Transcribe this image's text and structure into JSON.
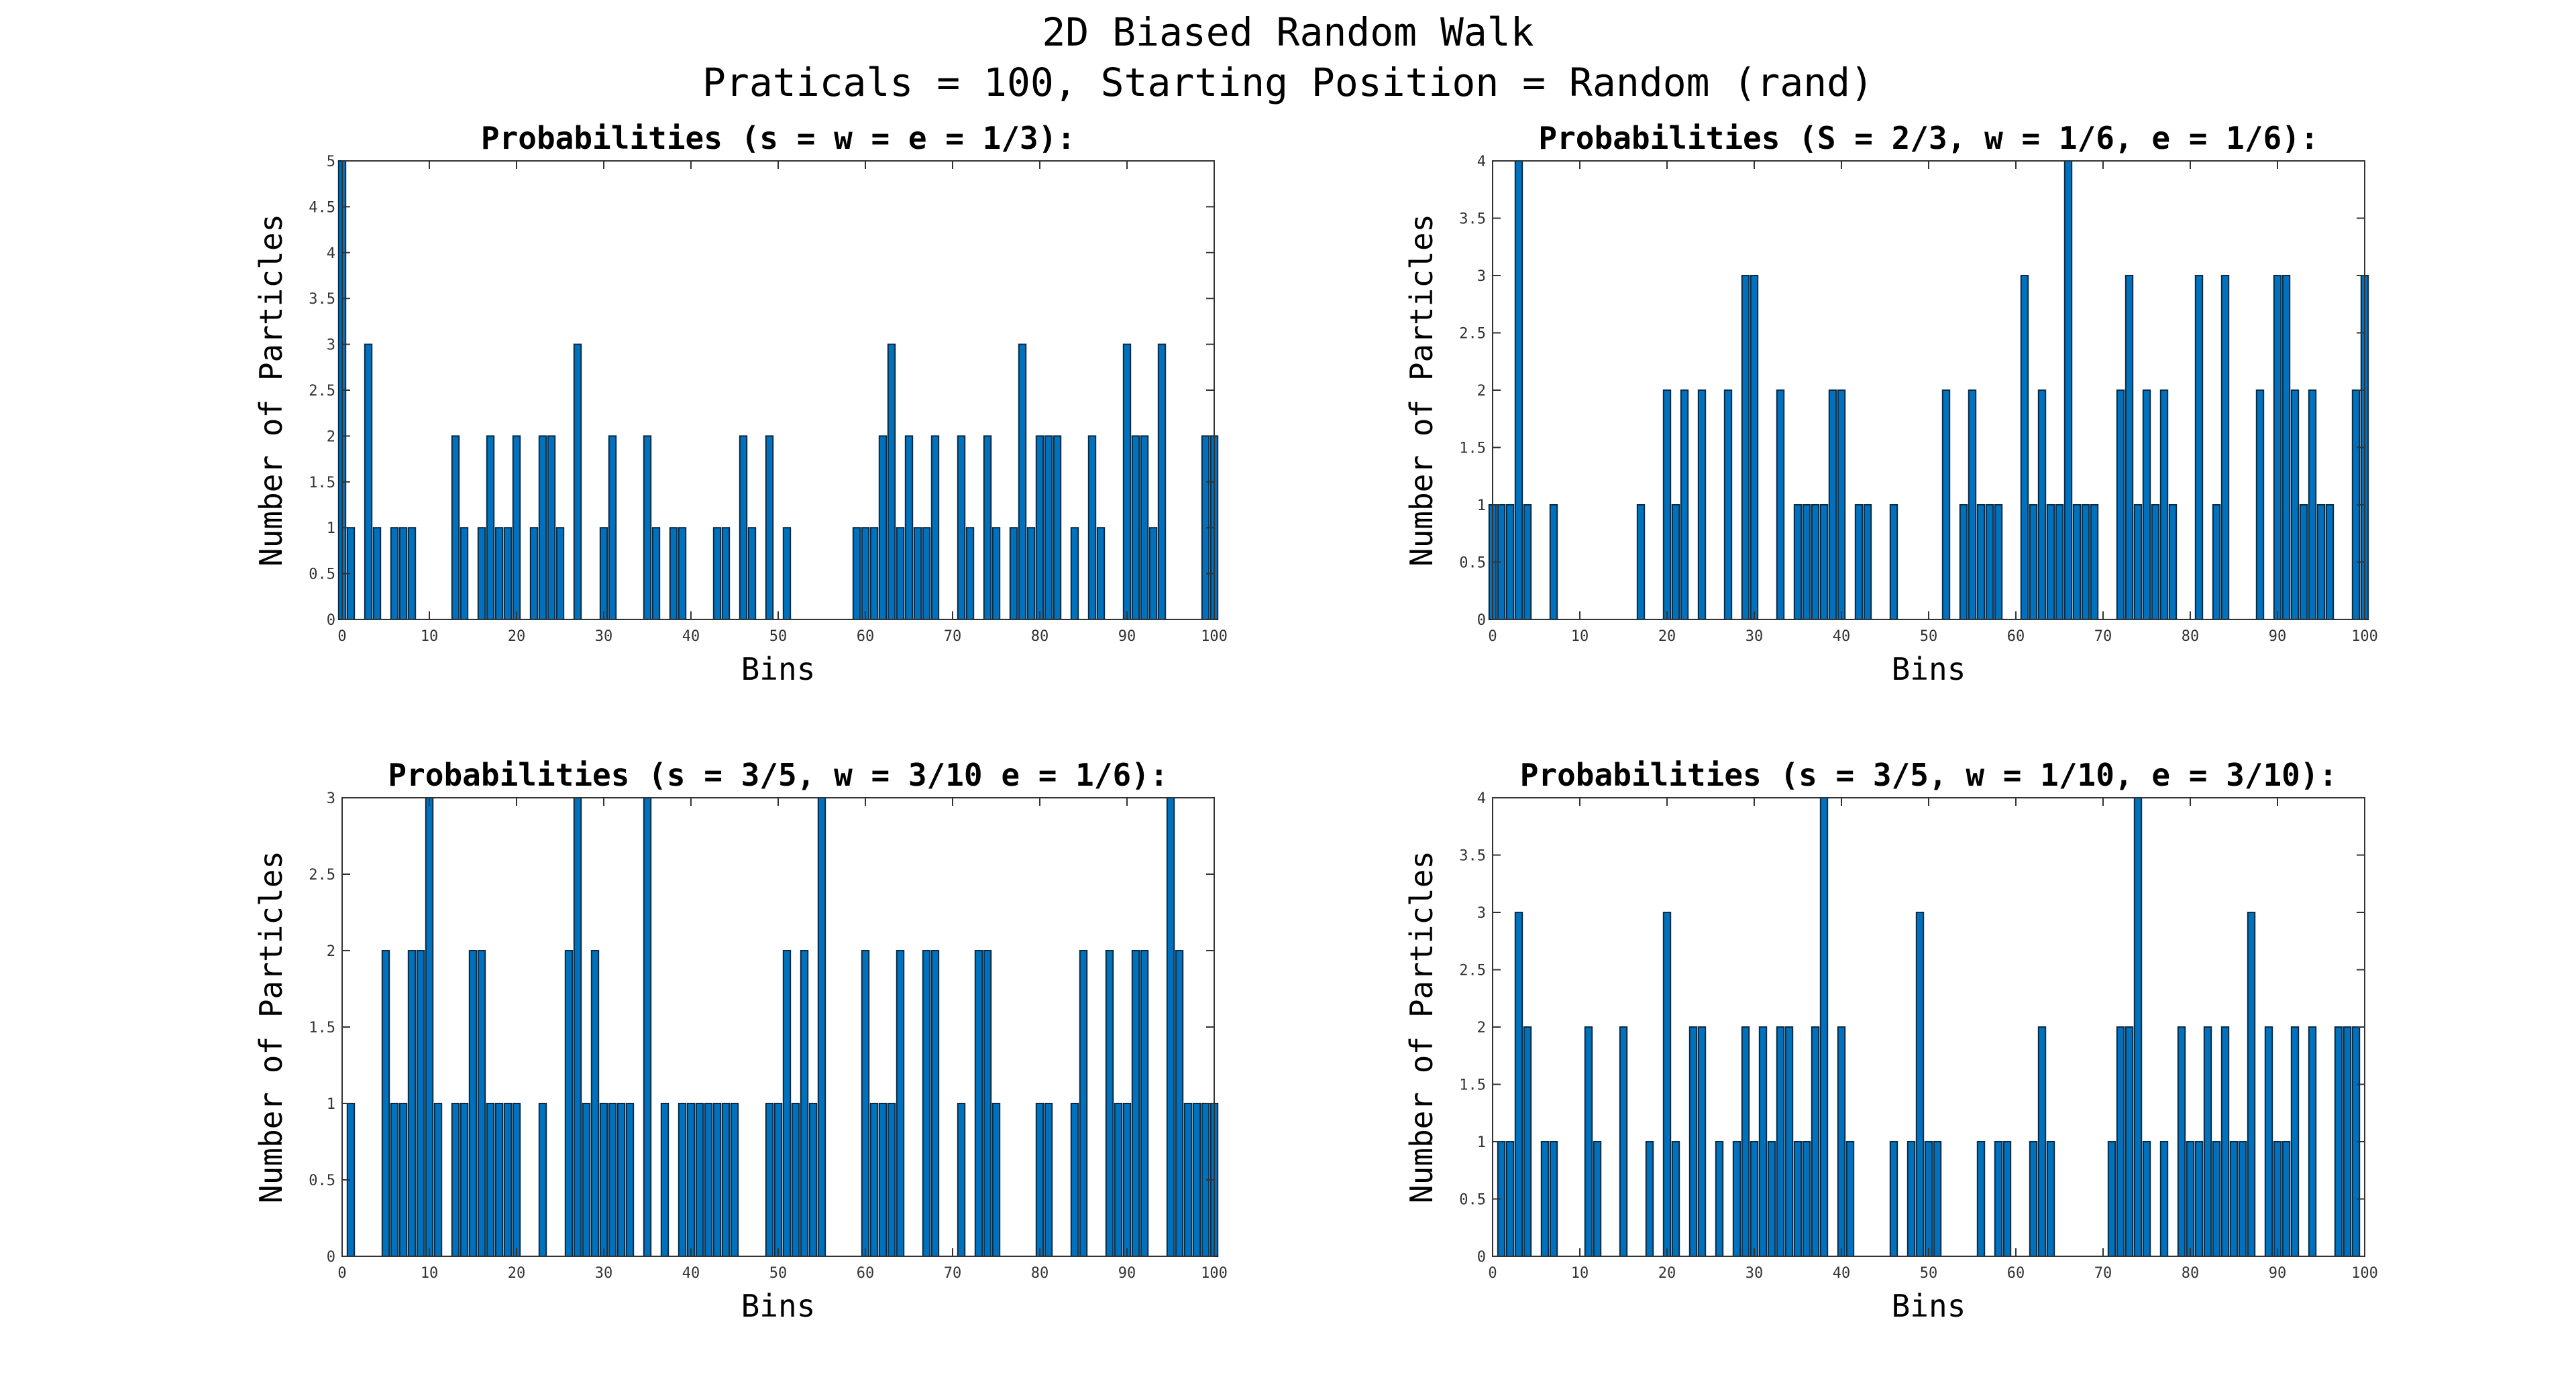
{
  "figure": {
    "title_line1": "2D Biased Random Walk",
    "title_line2": "Praticals = 100, Starting Position = Random (rand)"
  },
  "colors": {
    "bar": "#0072bd",
    "bar_edge": "#0b2a44",
    "axis": "#333333"
  },
  "chart_data": [
    {
      "type": "bar",
      "title": "Probabilities (s = w = e = 1/3):",
      "xlabel": "Bins",
      "ylabel": "Number of Particles",
      "xlim": [
        0,
        100
      ],
      "ylim": [
        0,
        5
      ],
      "xticks": [
        0,
        10,
        20,
        30,
        40,
        50,
        60,
        70,
        80,
        90,
        100
      ],
      "yticks": [
        0,
        0.5,
        1,
        1.5,
        2,
        2.5,
        3,
        3.5,
        4,
        4.5,
        5
      ],
      "grid": false,
      "values": [
        5,
        1,
        0,
        3,
        1,
        0,
        1,
        1,
        1,
        0,
        0,
        0,
        0,
        2,
        1,
        0,
        1,
        2,
        1,
        1,
        2,
        0,
        1,
        2,
        2,
        1,
        0,
        3,
        0,
        0,
        1,
        2,
        0,
        0,
        0,
        2,
        1,
        0,
        1,
        1,
        0,
        0,
        0,
        1,
        1,
        0,
        2,
        1,
        0,
        2,
        0,
        1,
        0,
        0,
        0,
        0,
        0,
        0,
        0,
        1,
        1,
        1,
        2,
        3,
        1,
        2,
        1,
        1,
        2,
        0,
        0,
        2,
        1,
        0,
        2,
        1,
        0,
        1,
        3,
        1,
        2,
        2,
        2,
        0,
        1,
        0,
        2,
        1,
        0,
        0,
        3,
        2,
        2,
        1,
        3,
        0,
        0,
        0,
        0,
        2,
        2
      ]
    },
    {
      "type": "bar",
      "title": "Probabilities (S = 2/3, w = 1/6, e = 1/6):",
      "xlabel": "Bins",
      "ylabel": "Number of Particles",
      "xlim": [
        0,
        100
      ],
      "ylim": [
        0,
        4
      ],
      "xticks": [
        0,
        10,
        20,
        30,
        40,
        50,
        60,
        70,
        80,
        90,
        100
      ],
      "yticks": [
        0,
        0.5,
        1,
        1.5,
        2,
        2.5,
        3,
        3.5,
        4
      ],
      "grid": false,
      "values": [
        1,
        1,
        1,
        4,
        1,
        0,
        0,
        1,
        0,
        0,
        0,
        0,
        0,
        0,
        0,
        0,
        0,
        1,
        0,
        0,
        2,
        1,
        2,
        0,
        2,
        0,
        0,
        2,
        0,
        3,
        3,
        0,
        0,
        2,
        0,
        1,
        1,
        1,
        1,
        2,
        2,
        0,
        1,
        1,
        0,
        0,
        1,
        0,
        0,
        0,
        0,
        0,
        2,
        0,
        1,
        2,
        1,
        1,
        1,
        0,
        0,
        3,
        1,
        2,
        1,
        1,
        4,
        1,
        1,
        1,
        0,
        0,
        2,
        3,
        1,
        2,
        1,
        2,
        1,
        0,
        0,
        3,
        0,
        1,
        3,
        0,
        0,
        0,
        2,
        0,
        3,
        3,
        2,
        1,
        2,
        1,
        1,
        0,
        0,
        2,
        3
      ]
    },
    {
      "type": "bar",
      "title": "Probabilities (s = 3/5, w = 3/10 e = 1/6):",
      "xlabel": "Bins",
      "ylabel": "Number of Particles",
      "xlim": [
        0,
        100
      ],
      "ylim": [
        0,
        3
      ],
      "xticks": [
        0,
        10,
        20,
        30,
        40,
        50,
        60,
        70,
        80,
        90,
        100
      ],
      "yticks": [
        0,
        0.5,
        1,
        1.5,
        2,
        2.5,
        3
      ],
      "grid": false,
      "values": [
        0,
        1,
        0,
        0,
        0,
        2,
        1,
        1,
        2,
        2,
        3,
        1,
        0,
        1,
        1,
        2,
        2,
        1,
        1,
        1,
        1,
        0,
        0,
        1,
        0,
        0,
        2,
        3,
        1,
        2,
        1,
        1,
        1,
        1,
        0,
        3,
        0,
        1,
        0,
        1,
        1,
        1,
        1,
        1,
        1,
        1,
        0,
        0,
        0,
        1,
        1,
        2,
        1,
        2,
        1,
        3,
        0,
        0,
        0,
        0,
        2,
        1,
        1,
        1,
        2,
        0,
        0,
        2,
        2,
        0,
        0,
        1,
        0,
        2,
        2,
        1,
        0,
        0,
        0,
        0,
        1,
        1,
        0,
        0,
        1,
        2,
        0,
        0,
        2,
        1,
        1,
        2,
        2,
        0,
        0,
        3,
        2,
        1,
        1,
        1,
        1
      ]
    },
    {
      "type": "bar",
      "title": "Probabilities (s = 3/5, w = 1/10, e = 3/10):",
      "xlabel": "Bins",
      "ylabel": "Number of Particles",
      "xlim": [
        0,
        100
      ],
      "ylim": [
        0,
        4
      ],
      "xticks": [
        0,
        10,
        20,
        30,
        40,
        50,
        60,
        70,
        80,
        90,
        100
      ],
      "yticks": [
        0,
        0.5,
        1,
        1.5,
        2,
        2.5,
        3,
        3.5,
        4
      ],
      "grid": false,
      "values": [
        0,
        1,
        1,
        3,
        2,
        0,
        1,
        1,
        0,
        0,
        0,
        2,
        1,
        0,
        0,
        2,
        0,
        0,
        1,
        0,
        3,
        1,
        0,
        2,
        2,
        0,
        1,
        0,
        1,
        2,
        1,
        2,
        1,
        2,
        2,
        1,
        1,
        2,
        4,
        0,
        2,
        1,
        0,
        0,
        0,
        0,
        1,
        0,
        1,
        3,
        1,
        1,
        0,
        0,
        0,
        0,
        1,
        0,
        1,
        1,
        0,
        0,
        1,
        2,
        1,
        0,
        0,
        0,
        0,
        0,
        0,
        1,
        2,
        2,
        4,
        1,
        0,
        1,
        0,
        2,
        1,
        1,
        2,
        1,
        2,
        1,
        1,
        3,
        0,
        2,
        1,
        1,
        2,
        0,
        2,
        0,
        0,
        2,
        2,
        2,
        0
      ]
    }
  ]
}
